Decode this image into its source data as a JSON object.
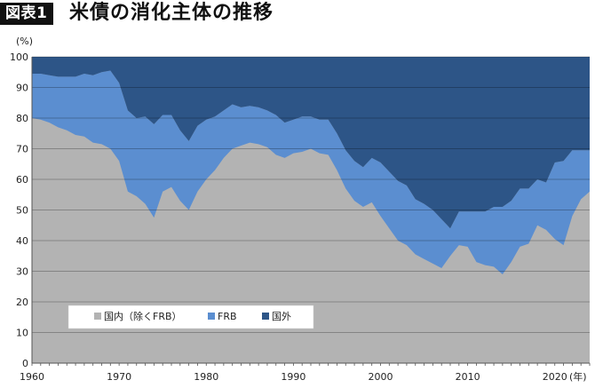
{
  "header": {
    "badge": "図表1",
    "title": "米債の消化主体の推移"
  },
  "chart_data": {
    "type": "area",
    "stacked": true,
    "title": "米債の消化主体の推移",
    "ylabel": "(%)",
    "xlabel": "(年)",
    "ylim": [
      0,
      100
    ],
    "xlim": [
      1960,
      2024
    ],
    "yticks": [
      0,
      10,
      20,
      30,
      40,
      50,
      60,
      70,
      80,
      90,
      100
    ],
    "xticks": [
      1960,
      1970,
      1980,
      1990,
      2000,
      2010,
      2020
    ],
    "grid": true,
    "legend_position": "bottom-left",
    "x": [
      1960,
      1961,
      1962,
      1963,
      1964,
      1965,
      1966,
      1967,
      1968,
      1969,
      1970,
      1971,
      1972,
      1973,
      1974,
      1975,
      1976,
      1977,
      1978,
      1979,
      1980,
      1981,
      1982,
      1983,
      1984,
      1985,
      1986,
      1987,
      1988,
      1989,
      1990,
      1991,
      1992,
      1993,
      1994,
      1995,
      1996,
      1997,
      1998,
      1999,
      2000,
      2001,
      2002,
      2003,
      2004,
      2005,
      2006,
      2007,
      2008,
      2009,
      2010,
      2011,
      2012,
      2013,
      2014,
      2015,
      2016,
      2017,
      2018,
      2019,
      2020,
      2021,
      2022,
      2023,
      2024
    ],
    "series": [
      {
        "name": "国内（除くFRB）",
        "color": "#b3b3b3",
        "values": [
          80,
          79.5,
          78.5,
          77,
          76,
          74.5,
          74,
          72,
          71.5,
          70,
          66,
          56,
          54.5,
          52,
          47.5,
          56,
          57.5,
          53,
          50,
          56,
          60,
          63,
          67,
          70,
          71,
          72,
          71.5,
          70.5,
          68,
          67,
          68.5,
          69,
          70,
          68.5,
          68,
          63,
          57,
          53,
          51,
          52.5,
          48,
          44,
          40,
          38.5,
          35.5,
          34,
          32.5,
          31,
          35,
          38.5,
          38,
          33,
          32,
          31.5,
          29,
          33,
          38,
          39,
          45,
          43.5,
          40.5,
          38.5,
          48,
          53.5,
          56
        ]
      },
      {
        "name": "FRB",
        "color": "#5b8ed0",
        "values": [
          14.5,
          15,
          15.5,
          16.5,
          17.5,
          19,
          20.5,
          22,
          23.5,
          25.5,
          25.5,
          26.5,
          25.5,
          28.5,
          30.5,
          25,
          23.5,
          23,
          22.5,
          21.5,
          19.5,
          17.5,
          15.5,
          14.5,
          12.5,
          12,
          12,
          12,
          13,
          11.5,
          11,
          11.5,
          10.5,
          11,
          11.5,
          12,
          12.5,
          13,
          13,
          14.5,
          17.5,
          18.5,
          19.5,
          19.5,
          18,
          18,
          17.5,
          16,
          9,
          11,
          11.5,
          16.5,
          17.5,
          19.5,
          22,
          20,
          19,
          18,
          15,
          15.5,
          25,
          27.5,
          21.5,
          16,
          13.5
        ]
      },
      {
        "name": "国外",
        "color": "#2d5587",
        "values": [
          5.5,
          5.5,
          6,
          6.5,
          6.5,
          6.5,
          5.5,
          6,
          5,
          4.5,
          8.5,
          17.5,
          20,
          19.5,
          22,
          19,
          19,
          24,
          27.5,
          22.5,
          20.5,
          19.5,
          17.5,
          15.5,
          16.5,
          16,
          16.5,
          17.5,
          19,
          21.5,
          20.5,
          19.5,
          19.5,
          20.5,
          20.5,
          25,
          30.5,
          34,
          36,
          33,
          34.5,
          37.5,
          40.5,
          42,
          46.5,
          48,
          50,
          53,
          56,
          50.5,
          50.5,
          50.5,
          50.5,
          49,
          49,
          47,
          43,
          43,
          40,
          41,
          34.5,
          34,
          30.5,
          30.5,
          30.5
        ]
      }
    ]
  }
}
